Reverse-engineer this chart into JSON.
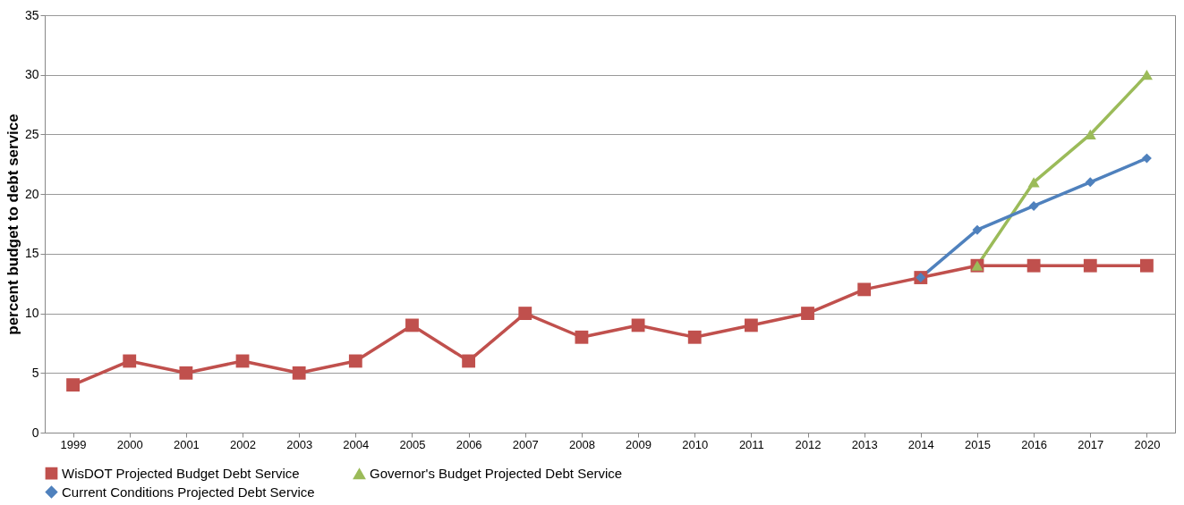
{
  "chart_data": {
    "type": "line",
    "ylabel": "percent budget to debt service",
    "categories": [
      "1999",
      "2000",
      "2001",
      "2002",
      "2003",
      "2004",
      "2005",
      "2006",
      "2007",
      "2008",
      "2009",
      "2010",
      "2011",
      "2012",
      "2013",
      "2014",
      "2015",
      "2016",
      "2017",
      "2020"
    ],
    "series": [
      {
        "name": "WisDOT Projected Budget Debt Service",
        "color": "#c0504d",
        "marker": "square",
        "values": [
          4,
          6,
          5,
          6,
          5,
          6,
          9,
          6,
          10,
          8,
          9,
          8,
          9,
          10,
          12,
          13,
          14,
          14,
          14,
          14
        ]
      },
      {
        "name": "Governor's Budget Projected Debt Service",
        "color": "#9bbb59",
        "marker": "triangle",
        "values": [
          null,
          null,
          null,
          null,
          null,
          null,
          null,
          null,
          null,
          null,
          null,
          null,
          null,
          null,
          null,
          null,
          14,
          21,
          25,
          30
        ]
      },
      {
        "name": "Current Conditions Projected Debt Service",
        "color": "#4f81bd",
        "marker": "diamond",
        "values": [
          null,
          null,
          null,
          null,
          null,
          null,
          null,
          null,
          null,
          null,
          null,
          null,
          null,
          null,
          null,
          13,
          17,
          19,
          21,
          23
        ]
      }
    ],
    "ylim": [
      0,
      35
    ],
    "yticks": [
      0,
      5,
      10,
      15,
      20,
      25,
      30,
      35
    ],
    "grid": "y",
    "legend": "bottom",
    "line_style": "solid"
  }
}
